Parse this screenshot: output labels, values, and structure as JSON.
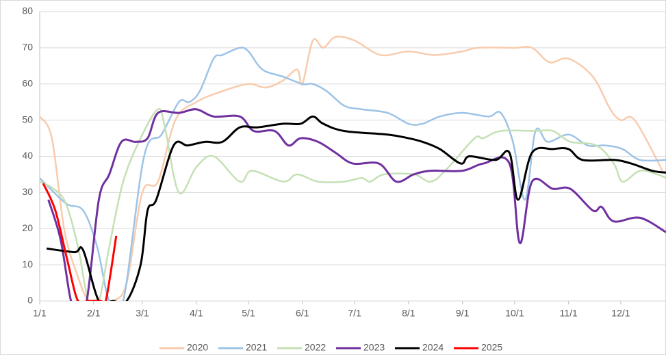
{
  "chart_data": {
    "type": "line",
    "xlim": [
      0,
      360
    ],
    "xticks": [
      {
        "value": 0,
        "label": "1/1"
      },
      {
        "value": 31,
        "label": "2/1"
      },
      {
        "value": 59,
        "label": "3/1"
      },
      {
        "value": 90,
        "label": "4/1"
      },
      {
        "value": 120,
        "label": "5/1"
      },
      {
        "value": 151,
        "label": "6/1"
      },
      {
        "value": 181,
        "label": "7/1"
      },
      {
        "value": 212,
        "label": "8/1"
      },
      {
        "value": 243,
        "label": "9/1"
      },
      {
        "value": 273,
        "label": "10/1"
      },
      {
        "value": 304,
        "label": "11/1"
      },
      {
        "value": 334,
        "label": "12/1"
      }
    ],
    "ylim": [
      0,
      80
    ],
    "yticks": [
      0,
      10,
      20,
      30,
      40,
      50,
      60,
      70,
      80
    ],
    "grid": true,
    "legend": "bottom",
    "series": [
      {
        "name": "2020",
        "color": "#f8cbad",
        "x": [
          0,
          7,
          14,
          21,
          28,
          35,
          42,
          50,
          59,
          68,
          78,
          90,
          105,
          120,
          130,
          140,
          148,
          151,
          157,
          163,
          170,
          181,
          196,
          212,
          227,
          243,
          252,
          273,
          283,
          293,
          304,
          318,
          328,
          334,
          342,
          358
        ],
        "values": [
          51,
          45,
          20,
          8,
          0,
          0,
          0,
          5,
          30,
          33,
          50,
          55,
          58,
          60,
          59,
          61,
          64,
          60,
          72,
          70,
          73,
          72,
          68,
          69,
          68,
          69,
          70,
          70,
          70,
          66,
          67,
          62,
          53,
          50,
          50,
          36
        ]
      },
      {
        "name": "2021",
        "color": "#9dc3e6",
        "x": [
          0,
          15,
          25,
          33,
          40,
          48,
          60,
          70,
          80,
          86,
          92,
          100,
          105,
          115,
          120,
          128,
          140,
          151,
          157,
          165,
          175,
          185,
          200,
          212,
          220,
          230,
          243,
          258,
          265,
          272,
          279,
          285,
          292,
          304,
          315,
          325,
          335,
          345,
          360
        ],
        "values": [
          34,
          27,
          25,
          15,
          0,
          0,
          40,
          46,
          55,
          55,
          58,
          67,
          68,
          70,
          69,
          64,
          62,
          60,
          60,
          58,
          54,
          53,
          52,
          49,
          49,
          51,
          52,
          51,
          52,
          44,
          28,
          47,
          44,
          46,
          43,
          43,
          42,
          39,
          39
        ]
      },
      {
        "name": "2022",
        "color": "#c5e0b4",
        "x": [
          0,
          8,
          15,
          22,
          28,
          34,
          40,
          48,
          58,
          68,
          72,
          80,
          90,
          100,
          115,
          122,
          140,
          148,
          160,
          175,
          185,
          190,
          198,
          215,
          225,
          235,
          250,
          255,
          265,
          285,
          295,
          305,
          320,
          330,
          335,
          345,
          355,
          360
        ],
        "values": [
          33,
          31,
          27,
          15,
          0,
          0,
          15,
          33,
          45,
          53,
          48,
          30,
          37,
          40,
          33,
          36,
          33,
          35,
          33,
          33,
          34,
          33,
          35,
          35,
          33,
          37,
          45,
          45,
          47,
          47,
          47,
          44,
          43,
          38,
          33,
          36,
          35,
          34
        ]
      },
      {
        "name": "2023",
        "color": "#7030a0",
        "x": [
          5,
          12,
          18,
          22,
          27,
          34,
          40,
          47,
          55,
          62,
          68,
          80,
          90,
          100,
          115,
          123,
          135,
          143,
          150,
          160,
          170,
          180,
          195,
          205,
          215,
          225,
          243,
          255,
          270,
          276,
          283,
          295,
          305,
          318,
          323,
          330,
          345,
          360
        ],
        "values": [
          28,
          17,
          0,
          0,
          0,
          28,
          35,
          44,
          44,
          45,
          52,
          52,
          53,
          51,
          51,
          47,
          47,
          43,
          45,
          44,
          41,
          38,
          38,
          33,
          35,
          36,
          36,
          38,
          38,
          16,
          33,
          31,
          31,
          25,
          26,
          22,
          23,
          19
        ]
      },
      {
        "name": "2024",
        "color": "#000000",
        "x": [
          4,
          20,
          25,
          34,
          42,
          50,
          58,
          62,
          67,
          77,
          85,
          95,
          105,
          115,
          125,
          140,
          150,
          157,
          163,
          175,
          200,
          212,
          220,
          230,
          242,
          247,
          262,
          270,
          275,
          283,
          295,
          304,
          312,
          330,
          340,
          352,
          360
        ],
        "values": [
          14.5,
          13.5,
          14,
          0,
          0,
          0,
          10,
          25,
          28,
          43,
          43,
          44,
          44,
          48,
          48,
          49,
          49,
          51,
          49,
          47,
          46,
          45,
          44,
          42,
          38,
          40,
          39,
          41,
          28,
          41,
          42,
          42,
          39,
          39,
          38,
          36,
          35.5
        ]
      },
      {
        "name": "2025",
        "color": "#ff0000",
        "x": [
          2,
          9,
          16,
          22,
          28,
          35,
          38,
          44
        ],
        "values": [
          32.5,
          25,
          11,
          0,
          0,
          0,
          0,
          18
        ]
      }
    ]
  }
}
